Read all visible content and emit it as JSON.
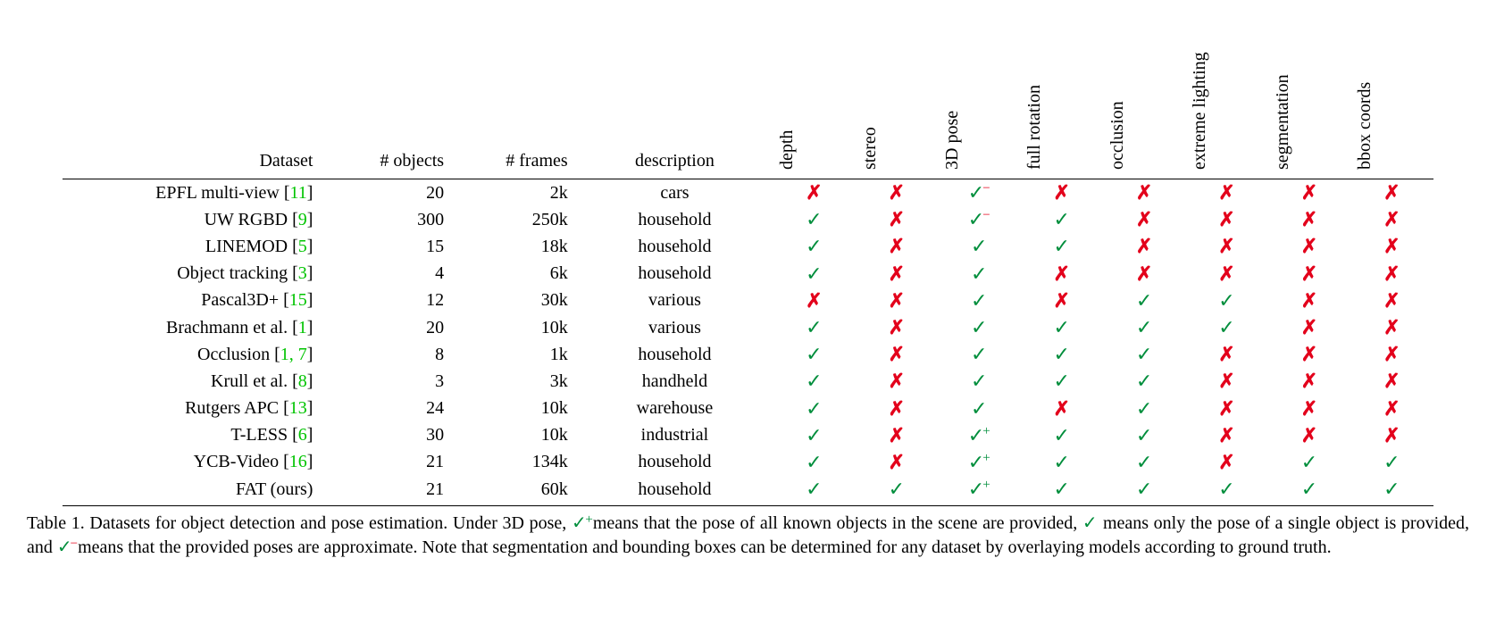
{
  "headers": {
    "dataset": "Dataset",
    "objects": "# objects",
    "frames": "# frames",
    "description": "description",
    "rotated": [
      "depth",
      "stereo",
      "3D pose",
      "full rotation",
      "occlusion",
      "extreme lighting",
      "segmentation",
      "bbox coords"
    ]
  },
  "rows": [
    {
      "name": "EPFL multi-view",
      "cite": "[11]",
      "objects": "20",
      "frames": "2k",
      "desc": "cars",
      "marks": [
        "x",
        "x",
        "c-",
        "x",
        "x",
        "x",
        "x",
        "x"
      ]
    },
    {
      "name": "UW RGBD",
      "cite": "[9]",
      "objects": "300",
      "frames": "250k",
      "desc": "household",
      "marks": [
        "c",
        "x",
        "c-",
        "c",
        "x",
        "x",
        "x",
        "x"
      ]
    },
    {
      "name": "LINEMOD",
      "cite": "[5]",
      "objects": "15",
      "frames": "18k",
      "desc": "household",
      "marks": [
        "c",
        "x",
        "c",
        "c",
        "x",
        "x",
        "x",
        "x"
      ]
    },
    {
      "name": "Object tracking",
      "cite": "[3]",
      "objects": "4",
      "frames": "6k",
      "desc": "household",
      "marks": [
        "c",
        "x",
        "c",
        "x",
        "x",
        "x",
        "x",
        "x"
      ]
    },
    {
      "name": "Pascal3D+",
      "cite": "[15]",
      "objects": "12",
      "frames": "30k",
      "desc": "various",
      "marks": [
        "x",
        "x",
        "c",
        "x",
        "c",
        "c",
        "x",
        "x"
      ]
    },
    {
      "name": "Brachmann et al.",
      "cite": "[1]",
      "objects": "20",
      "frames": "10k",
      "desc": "various",
      "marks": [
        "c",
        "x",
        "c",
        "c",
        "c",
        "c",
        "x",
        "x"
      ]
    },
    {
      "name": "Occlusion",
      "cite": "[1, 7]",
      "objects": "8",
      "frames": "1k",
      "desc": "household",
      "marks": [
        "c",
        "x",
        "c",
        "c",
        "c",
        "x",
        "x",
        "x"
      ]
    },
    {
      "name": "Krull et al.",
      "cite": "[8]",
      "objects": "3",
      "frames": "3k",
      "desc": "handheld",
      "marks": [
        "c",
        "x",
        "c",
        "c",
        "c",
        "x",
        "x",
        "x"
      ]
    },
    {
      "name": "Rutgers APC",
      "cite": "[13]",
      "objects": "24",
      "frames": "10k",
      "desc": "warehouse",
      "marks": [
        "c",
        "x",
        "c",
        "x",
        "c",
        "x",
        "x",
        "x"
      ]
    },
    {
      "name": "T-LESS",
      "cite": "[6]",
      "objects": "30",
      "frames": "10k",
      "desc": "industrial",
      "marks": [
        "c",
        "x",
        "c+",
        "c",
        "c",
        "x",
        "x",
        "x"
      ]
    },
    {
      "name": "YCB-Video",
      "cite": "[16]",
      "objects": "21",
      "frames": "134k",
      "desc": "household",
      "marks": [
        "c",
        "x",
        "c+",
        "c",
        "c",
        "x",
        "c",
        "c"
      ]
    },
    {
      "name": "FAT (ours)",
      "cite": "",
      "objects": "21",
      "frames": "60k",
      "desc": "household",
      "marks": [
        "c",
        "c",
        "c+",
        "c",
        "c",
        "c",
        "c",
        "c"
      ]
    }
  ],
  "caption": {
    "label": "Table 1.",
    "t1": "Datasets for object detection and pose estimation.  Under 3D pose, ",
    "t2": "means that the pose of all known objects in the scene are provided, ",
    "t3": "means only the pose of a single object is provided, and ",
    "t4": "means that the provided poses are approximate.  Note that segmentation and bounding boxes can be determined for any dataset by overlaying models according to ground truth."
  },
  "glyphs": {
    "check": "✓",
    "cross": "✗",
    "plus": "+",
    "minus": "−"
  },
  "colors": {
    "check": "#008e3c",
    "cross": "#e3001b",
    "cite": "#00c400"
  }
}
